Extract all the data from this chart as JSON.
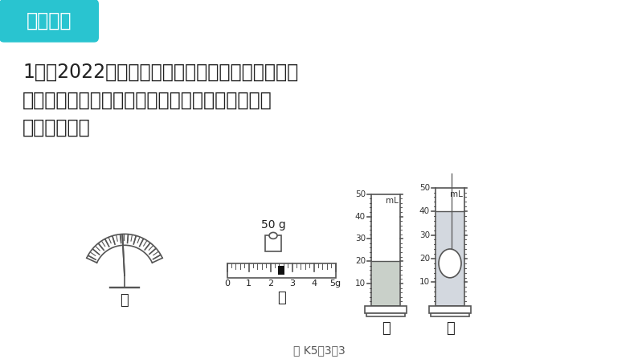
{
  "bg_color": "#ffffff",
  "title_badge_text": "夯实基础",
  "title_badge_color": "#29c4d0",
  "title_badge_text_color": "#ffffff",
  "question_text_line1": "1．（2022贵港修改）某兴趣小组计划测量一块形",
  "question_text_line2": "状不规则的小石块密度，备用器材有天平、量筒、",
  "question_text_line3": "水和细线等。",
  "fig_caption": "图 K5－3－3",
  "label_jia": "甲",
  "label_yi": "乙",
  "label_bing": "丙",
  "label_ding": "丁",
  "weight_label": "50 g",
  "lc": "#555555",
  "text_color": "#222222"
}
